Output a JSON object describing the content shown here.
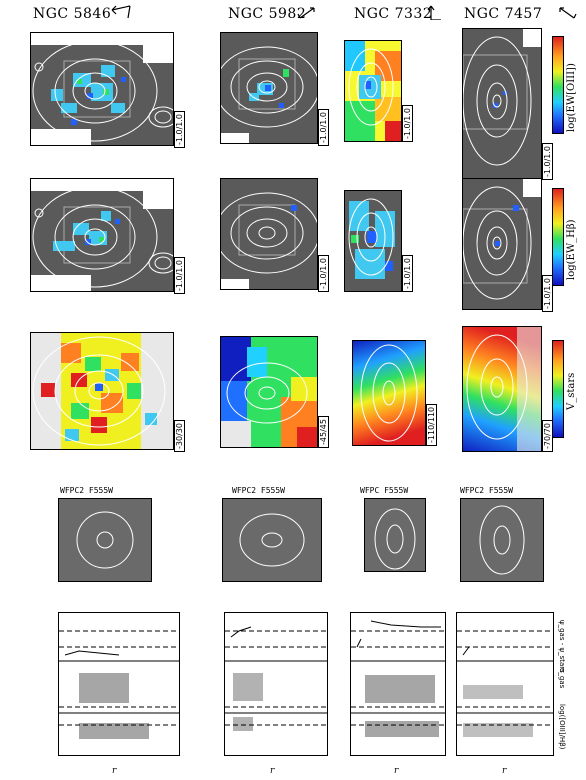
{
  "galaxies": [
    {
      "name": "NGC 5846",
      "range_oiii": "-1.0/1.0",
      "range_hb": "-1.0/1.0",
      "range_v": "-30/30",
      "hst": "WFPC2 F555W"
    },
    {
      "name": "NGC 5982",
      "range_oiii": "-1.0/1.0",
      "range_hb": "-1.0/1.0",
      "range_v": "-45/45",
      "hst": "WFPC2 F555W"
    },
    {
      "name": "NGC 7332",
      "range_oiii": "-1.0/1.0",
      "range_hb": "-1.0/1.0",
      "range_v": "-110/110",
      "hst": "WFPC F555W"
    },
    {
      "name": "NGC 7457",
      "range_oiii": "-1.0/1.0",
      "range_hb": "-1.0/1.0",
      "range_v": "-70/70",
      "hst": "WFPC2 F555W"
    }
  ],
  "colorbars": {
    "oiii": "log(EW[OIII])",
    "hb": "log(EW_Hβ)",
    "v": "V_stars"
  },
  "profile_labels": {
    "pa": "ψ_gas - ψ_stars",
    "sigma": "σ_gas",
    "ratio": "log([OIII]/Hβ)",
    "xlabel": "r"
  },
  "colors": {
    "panel_gray": "#5a5a5a",
    "contour": "#ffffff"
  }
}
